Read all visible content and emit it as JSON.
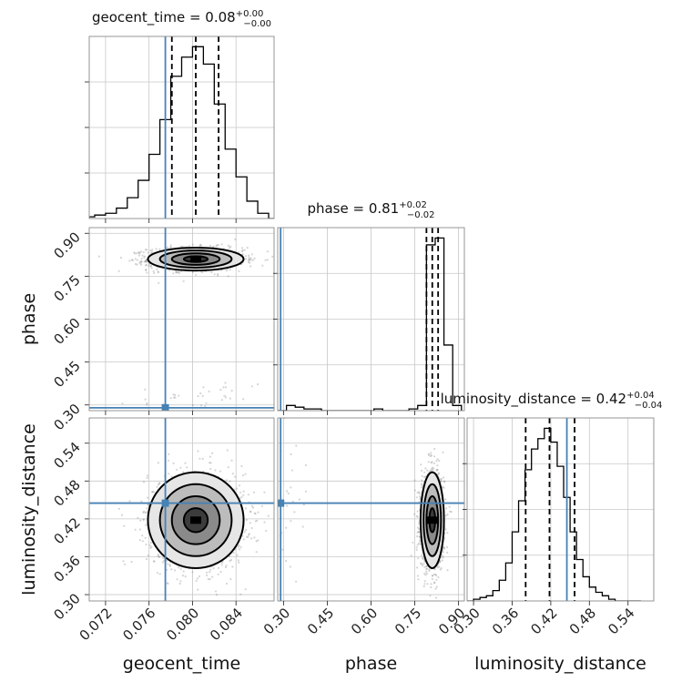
{
  "chart_data": {
    "type": "corner",
    "parameters": [
      {
        "name": "geocent_time",
        "axis_label": "geocent_time",
        "range": [
          0.0705,
          0.0875
        ],
        "ticks": [
          0.072,
          0.076,
          0.08,
          0.084
        ],
        "tick_labels": [
          "0.072",
          "0.076",
          "0.080",
          "0.084"
        ],
        "truth": 0.0775,
        "median": 0.0803,
        "q_low": 0.0781,
        "q_high": 0.0824,
        "title": {
          "main": "geocent_time = 0.08",
          "sup": "+0.00",
          "sub": "−0.00"
        },
        "hist_bins": [
          0.07,
          0.071,
          0.072,
          0.073,
          0.074,
          0.075,
          0.076,
          0.077,
          0.078,
          0.079,
          0.08,
          0.081,
          0.082,
          0.083,
          0.084,
          0.085,
          0.086,
          0.087,
          0.088
        ],
        "hist_values": [
          1,
          2,
          3,
          6,
          12,
          22,
          37,
          57,
          82,
          93,
          99,
          89,
          66,
          40,
          24,
          10,
          3,
          0
        ]
      },
      {
        "name": "phase",
        "axis_label": "phase",
        "range": [
          0.28,
          0.92
        ],
        "ticks": [
          0.3,
          0.45,
          0.6,
          0.75,
          0.9
        ],
        "tick_labels": [
          "0.30",
          "0.45",
          "0.60",
          "0.75",
          "0.90"
        ],
        "truth": 0.29,
        "median": 0.81,
        "q_low": 0.79,
        "q_high": 0.83,
        "title": {
          "main": "phase = 0.81",
          "sup": "+0.02",
          "sub": "−0.02"
        },
        "hist_bins": [
          0.28,
          0.31,
          0.34,
          0.37,
          0.4,
          0.43,
          0.46,
          0.49,
          0.52,
          0.55,
          0.58,
          0.61,
          0.64,
          0.67,
          0.7,
          0.73,
          0.76,
          0.79,
          0.82,
          0.85,
          0.88,
          0.91
        ],
        "hist_values": [
          0,
          3,
          2,
          1,
          1,
          0,
          0,
          0,
          0,
          0,
          0,
          1,
          0,
          0,
          0,
          1,
          3,
          96,
          100,
          38,
          3
        ]
      },
      {
        "name": "luminosity_distance",
        "axis_label": "luminosity_distance",
        "range": [
          0.29,
          0.58
        ],
        "ticks": [
          0.3,
          0.36,
          0.42,
          0.48,
          0.54
        ],
        "tick_labels": [
          "0.30",
          "0.36",
          "0.42",
          "0.48",
          "0.54"
        ],
        "truth": 0.445,
        "median": 0.418,
        "q_low": 0.381,
        "q_high": 0.457,
        "title": {
          "main": "luminosity_distance = 0.42",
          "sup": "+0.04",
          "sub": "−0.04"
        },
        "hist_bins": [
          0.29,
          0.3,
          0.31,
          0.32,
          0.33,
          0.34,
          0.35,
          0.36,
          0.37,
          0.38,
          0.39,
          0.4,
          0.41,
          0.42,
          0.43,
          0.44,
          0.45,
          0.46,
          0.47,
          0.48,
          0.49,
          0.5,
          0.51,
          0.52,
          0.53,
          0.54,
          0.55,
          0.56
        ],
        "hist_values": [
          0,
          1,
          2,
          3,
          6,
          12,
          22,
          40,
          58,
          76,
          88,
          94,
          100,
          92,
          78,
          60,
          40,
          24,
          14,
          8,
          5,
          3,
          1,
          0,
          0,
          0,
          0
        ]
      }
    ],
    "truths": {
      "geocent_time": 0.0775,
      "phase": 0.29,
      "luminosity_distance": 0.445
    },
    "scatter_clusters": {
      "main": {
        "geocent_time": [
          0.0803,
          0.0022
        ],
        "phase": [
          0.81,
          0.02
        ],
        "luminosity_distance": [
          0.418,
          0.038
        ]
      },
      "minor": {
        "geocent_time": [
          0.081,
          0.003
        ],
        "phase": [
          0.33,
          0.03
        ],
        "luminosity_distance": [
          0.43,
          0.05
        ]
      }
    },
    "contour_levels_sigma": [
      0.5,
      1.0,
      1.5,
      2.0
    ],
    "colors": {
      "truth": "#4682b4",
      "hist": "#000000",
      "grid": "#c8c8c8",
      "points": "#888888"
    }
  }
}
